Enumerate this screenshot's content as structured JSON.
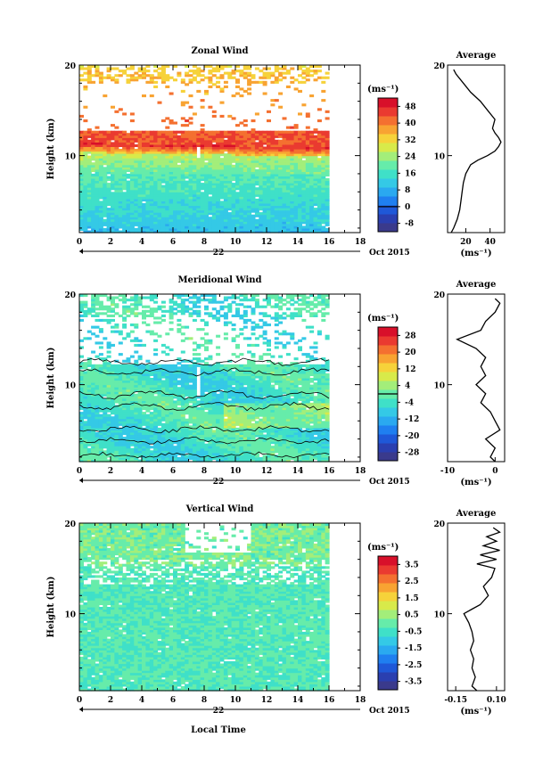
{
  "xlabel": "Local Time",
  "date_label": "Oct 2015",
  "day_label": "22",
  "avg_title": "Average",
  "unit": "(ms⁻¹)",
  "chart_data": [
    {
      "type": "heatmap",
      "title": "Zonal Wind",
      "ylabel": "Height (km)",
      "xlim": [
        0,
        18
      ],
      "ylim": [
        1.5,
        20
      ],
      "xticks": [
        0,
        2,
        4,
        6,
        8,
        10,
        12,
        14,
        16,
        18
      ],
      "yticks": [
        10,
        20
      ],
      "data_end_x": 16,
      "colorbar": {
        "ticks": [
          "48",
          "40",
          "32",
          "24",
          "16",
          "8",
          "0",
          "-8"
        ],
        "min": -12,
        "max": 52,
        "colors": [
          "#3a3a8c",
          "#2a3fb0",
          "#1f58d8",
          "#1f7ff0",
          "#2aa9f0",
          "#34c9e6",
          "#3fe0c8",
          "#66ecaa",
          "#a3ee7a",
          "#d8ea4a",
          "#f6d23a",
          "#f8a332",
          "#f47030",
          "#ea3a30",
          "#d8102a"
        ],
        "zero_marker": 0
      },
      "description_levels": {
        "low_layer": {
          "height_range": [
            1.5,
            4
          ],
          "value": 12
        },
        "mid_layer": {
          "height_range": [
            4,
            8
          ],
          "value": 16
        },
        "upper_layer": {
          "height_range": [
            8,
            10.5
          ],
          "value": 24
        },
        "jet_core": {
          "height_range": [
            10.5,
            12
          ],
          "value": 44
        }
      },
      "average_profile": {
        "xlim": [
          5,
          52
        ],
        "xticks": [
          20,
          40
        ],
        "height": [
          1.5,
          2,
          3,
          4,
          5,
          6,
          7,
          8,
          9,
          9.5,
          10,
          10.5,
          11,
          11.5,
          12,
          12.5,
          13,
          14,
          15,
          16,
          17,
          18,
          19,
          19.5
        ],
        "value": [
          8,
          10,
          13,
          15,
          16,
          17,
          18,
          20,
          24,
          30,
          38,
          44,
          47,
          49,
          47,
          44,
          42,
          44,
          38,
          32,
          24,
          18,
          12,
          10
        ]
      }
    },
    {
      "type": "heatmap",
      "title": "Meridional Wind",
      "ylabel": "Height (km)",
      "xlim": [
        0,
        18
      ],
      "ylim": [
        1.5,
        20
      ],
      "xticks": [
        0,
        2,
        4,
        6,
        8,
        10,
        12,
        14,
        16,
        18
      ],
      "yticks": [
        10,
        20
      ],
      "data_end_x": 16,
      "colorbar": {
        "ticks": [
          "28",
          "20",
          "12",
          "4",
          "-4",
          "-12",
          "-20",
          "-28"
        ],
        "min": -32,
        "max": 32,
        "colors": [
          "#3a3a8c",
          "#2a3fb0",
          "#1f58d8",
          "#1f7ff0",
          "#2aa9f0",
          "#34c9e6",
          "#3fe0c8",
          "#66ecaa",
          "#a3ee7a",
          "#d8ea4a",
          "#f6d23a",
          "#f8a332",
          "#f47030",
          "#ea3a30",
          "#d8102a"
        ],
        "zero_marker": 0
      },
      "average_profile": {
        "xlim": [
          -10,
          2
        ],
        "xticks": [
          -10,
          0
        ],
        "height": [
          1.5,
          2,
          3,
          4,
          5,
          6,
          7,
          8,
          9,
          10,
          11,
          12,
          13,
          14,
          15,
          16,
          17,
          18,
          19,
          19.5
        ],
        "value": [
          0,
          -1,
          0,
          -2,
          1,
          0,
          -1,
          -3,
          -2,
          -4,
          -2,
          -3,
          -2,
          -4,
          -8,
          -3,
          -2,
          0,
          1,
          0
        ]
      }
    },
    {
      "type": "heatmap",
      "title": "Vertical Wind",
      "ylabel": "Height (km)",
      "xlim": [
        0,
        18
      ],
      "ylim": [
        1.5,
        20
      ],
      "xticks": [
        0,
        2,
        4,
        6,
        8,
        10,
        12,
        14,
        16,
        18
      ],
      "yticks": [
        10,
        20
      ],
      "data_end_x": 16,
      "colorbar": {
        "ticks": [
          "3.5",
          "2.5",
          "1.5",
          "0.5",
          "-0.5",
          "-1.5",
          "-2.5",
          "-3.5"
        ],
        "min": -4,
        "max": 4,
        "colors": [
          "#3a3a8c",
          "#2a3fb0",
          "#1f58d8",
          "#1f7ff0",
          "#2aa9f0",
          "#34c9e6",
          "#3fe0c8",
          "#66ecaa",
          "#a3ee7a",
          "#d8ea4a",
          "#f6d23a",
          "#f8a332",
          "#f47030",
          "#ea3a30",
          "#d8102a"
        ]
      },
      "average_profile": {
        "xlim": [
          -0.2,
          0.15
        ],
        "xticks": [
          -0.15,
          0.1
        ],
        "xtick_labels": [
          "-0.15",
          "0.10"
        ],
        "height": [
          1.5,
          2,
          3,
          4,
          5,
          6,
          7,
          8,
          9,
          10,
          10.5,
          11,
          12,
          13,
          14,
          15,
          15.5,
          16,
          16.5,
          17,
          17.5,
          18,
          18.5,
          19,
          19.5
        ],
        "value": [
          -0.02,
          -0.05,
          -0.03,
          -0.05,
          -0.04,
          -0.06,
          -0.04,
          -0.05,
          -0.07,
          -0.1,
          -0.05,
          0.0,
          0.05,
          0.02,
          0.07,
          0.09,
          -0.02,
          0.1,
          0.0,
          0.12,
          0.02,
          0.1,
          0.04,
          0.12,
          0.08
        ]
      }
    }
  ]
}
